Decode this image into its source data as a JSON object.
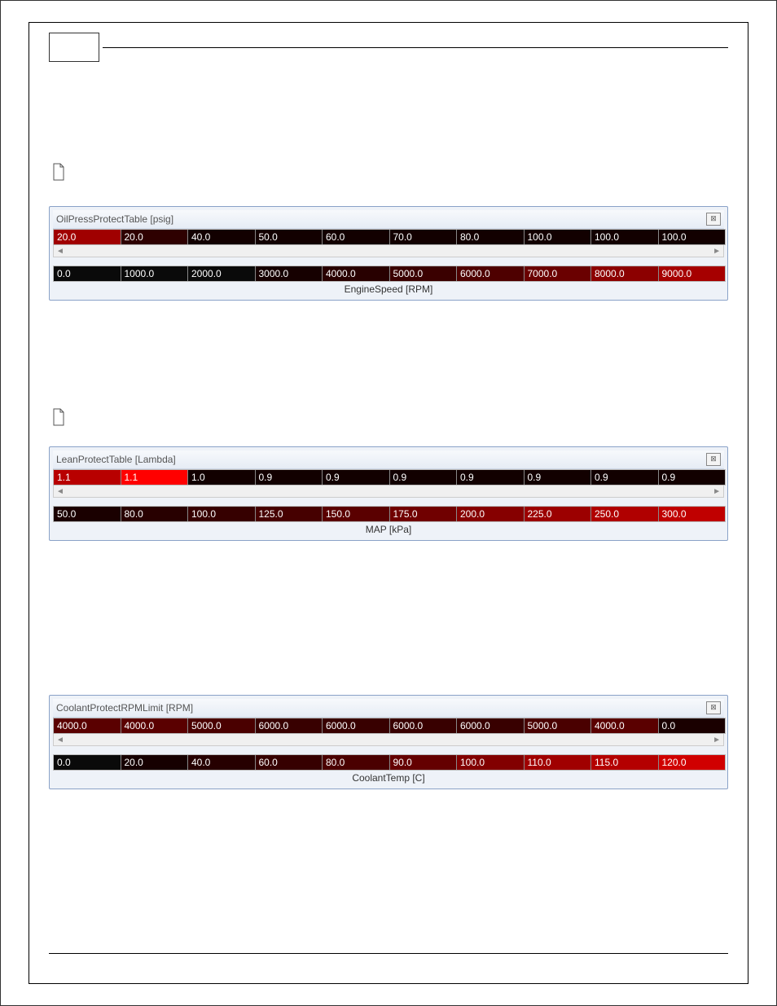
{
  "sections": {
    "oilPress": {
      "heading": " ",
      "linkText": " ",
      "panelTitle": "OilPressProtectTable [psig]",
      "axisLabel": "EngineSpeed [RPM]",
      "dataRow": [
        "20.0",
        "20.0",
        "40.0",
        "50.0",
        "60.0",
        "70.0",
        "80.0",
        "100.0",
        "100.0",
        "100.0"
      ],
      "dataColors": [
        "#a00000",
        "#2e0000",
        "#120000",
        "#120000",
        "#120000",
        "#120000",
        "#120000",
        "#120000",
        "#120000",
        "#120000"
      ],
      "axisRow": [
        "0.0",
        "1000.0",
        "2000.0",
        "3000.0",
        "4000.0",
        "5000.0",
        "6000.0",
        "7000.0",
        "8000.0",
        "9000.0"
      ],
      "axisColors": [
        "#0a0a0a",
        "#0a0a0a",
        "#0a0a0a",
        "#160000",
        "#280000",
        "#3a0000",
        "#4e0000",
        "#6a0000",
        "#8c0000",
        "#a60000"
      ]
    },
    "leanProtect": {
      "heading": " ",
      "linkLeft": " ",
      "linkRight": " ",
      "panelTitle": "LeanProtectTable [Lambda]",
      "axisLabel": "MAP [kPa]",
      "dataRow": [
        "1.1",
        "1.1",
        "1.0",
        "0.9",
        "0.9",
        "0.9",
        "0.9",
        "0.9",
        "0.9",
        "0.9"
      ],
      "dataColors": [
        "#b80000",
        "#ff0000",
        "#120000",
        "#120000",
        "#120000",
        "#120000",
        "#120000",
        "#120000",
        "#120000",
        "#120000"
      ],
      "axisRow": [
        "50.0",
        "80.0",
        "100.0",
        "125.0",
        "150.0",
        "175.0",
        "200.0",
        "225.0",
        "250.0",
        "300.0"
      ],
      "axisColors": [
        "#1a0000",
        "#280000",
        "#360000",
        "#460000",
        "#5a0000",
        "#700000",
        "#860000",
        "#9c0000",
        "#b00000",
        "#c00000"
      ]
    },
    "coolant": {
      "heading": " ",
      "panelTitle": "CoolantProtectRPMLimit [RPM]",
      "axisLabel": "CoolantTemp [C]",
      "dataRow": [
        "4000.0",
        "4000.0",
        "5000.0",
        "6000.0",
        "6000.0",
        "6000.0",
        "6000.0",
        "5000.0",
        "4000.0",
        "0.0"
      ],
      "dataColors": [
        "#5a0000",
        "#5a0000",
        "#4a0000",
        "#380000",
        "#380000",
        "#380000",
        "#380000",
        "#4a0000",
        "#5a0000",
        "#1a0000"
      ],
      "axisRow": [
        "0.0",
        "20.0",
        "40.0",
        "60.0",
        "80.0",
        "90.0",
        "100.0",
        "110.0",
        "115.0",
        "120.0"
      ],
      "axisColors": [
        "#0a0a0a",
        "#160000",
        "#260000",
        "#360000",
        "#4a0000",
        "#640000",
        "#820000",
        "#a00000",
        "#b40000",
        "#d00000"
      ]
    }
  },
  "ui": {
    "closeGlyph": "⊠",
    "scrollLeft": "◄",
    "scrollRight": "►"
  }
}
